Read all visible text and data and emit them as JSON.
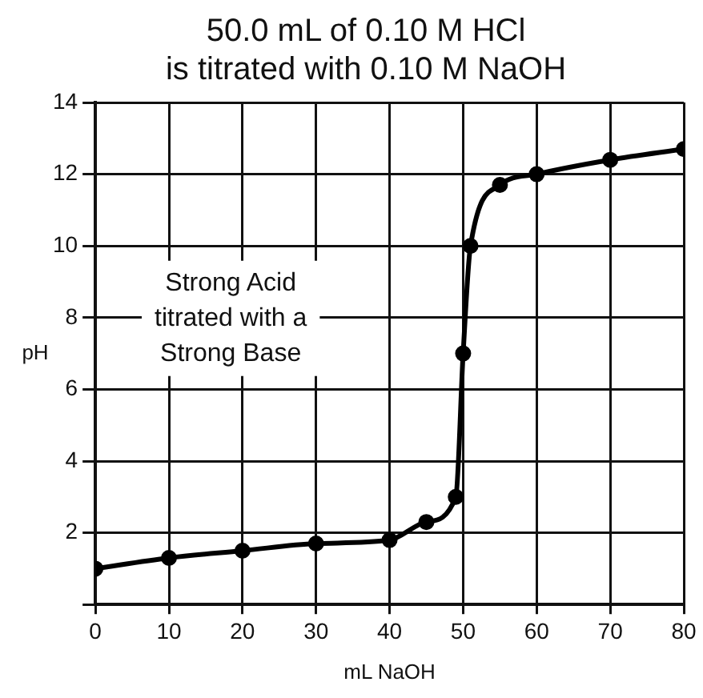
{
  "chart_data": {
    "type": "line",
    "title": "50.0 mL of 0.10 M HCl\nis titrated with 0.10 M NaOH",
    "xlabel": "mL NaOH",
    "ylabel": "pH",
    "annotations": [
      "Strong Acid\ntitrated with a\nStrong Base"
    ],
    "x": [
      0,
      10,
      20,
      30,
      40,
      45,
      49,
      50,
      51,
      55,
      60,
      70,
      80
    ],
    "series": [
      {
        "color": "#000000",
        "values": [
          1.0,
          1.3,
          1.5,
          1.7,
          1.8,
          2.3,
          3.0,
          7.0,
          10.0,
          11.7,
          12.0,
          12.4,
          12.7
        ]
      }
    ],
    "xlim": [
      0,
      80
    ],
    "xticks": [
      0,
      10,
      20,
      30,
      40,
      50,
      60,
      70,
      80
    ],
    "ylim": [
      0,
      14
    ],
    "yticks": [
      {
        "value": 0,
        "label": null
      },
      2,
      4,
      6,
      8,
      10,
      12,
      14
    ],
    "grid": true,
    "legend": false,
    "marker": "circle",
    "line_style": "solid"
  }
}
